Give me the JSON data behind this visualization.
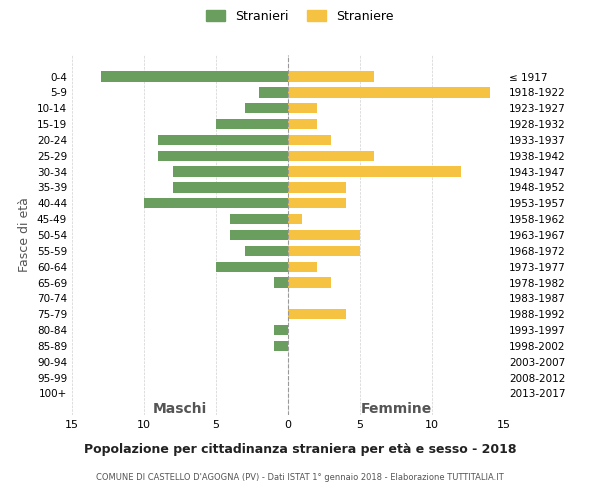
{
  "age_groups": [
    "0-4",
    "5-9",
    "10-14",
    "15-19",
    "20-24",
    "25-29",
    "30-34",
    "35-39",
    "40-44",
    "45-49",
    "50-54",
    "55-59",
    "60-64",
    "65-69",
    "70-74",
    "75-79",
    "80-84",
    "85-89",
    "90-94",
    "95-99",
    "100+"
  ],
  "birth_years": [
    "2013-2017",
    "2008-2012",
    "2003-2007",
    "1998-2002",
    "1993-1997",
    "1988-1992",
    "1983-1987",
    "1978-1982",
    "1973-1977",
    "1968-1972",
    "1963-1967",
    "1958-1962",
    "1953-1957",
    "1948-1952",
    "1943-1947",
    "1938-1942",
    "1933-1937",
    "1928-1932",
    "1923-1927",
    "1918-1922",
    "≤ 1917"
  ],
  "males": [
    13,
    2,
    3,
    5,
    9,
    9,
    8,
    8,
    10,
    4,
    4,
    3,
    5,
    1,
    0,
    0,
    1,
    1,
    0,
    0,
    0
  ],
  "females": [
    6,
    14,
    2,
    2,
    3,
    6,
    12,
    4,
    4,
    1,
    5,
    5,
    2,
    3,
    0,
    4,
    0,
    0,
    0,
    0,
    0
  ],
  "male_color": "#6a9e5f",
  "female_color": "#f5c242",
  "background_color": "#ffffff",
  "grid_color": "#cccccc",
  "xlim": 15,
  "title": "Popolazione per cittadinanza straniera per età e sesso - 2018",
  "subtitle": "COMUNE DI CASTELLO D'AGOGNA (PV) - Dati ISTAT 1° gennaio 2018 - Elaborazione TUTTITALIA.IT",
  "ylabel_left": "Fasce di età",
  "xlabel_left": "Maschi",
  "xlabel_right": "Femmine",
  "legend_stranieri": "Stranieri",
  "legend_straniere": "Straniere"
}
